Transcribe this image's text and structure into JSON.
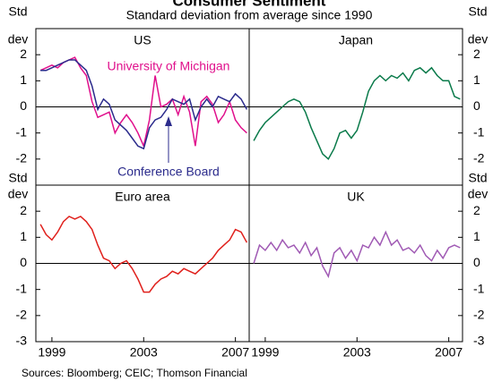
{
  "title": "Consumer Sentiment",
  "subtitle": "Standard deviation from average since 1990",
  "axis_label": [
    "Std",
    "dev"
  ],
  "source": "Sources: Bloomberg; CEIC; Thomson Financial",
  "chart_data": [
    {
      "type": "line",
      "title": "US",
      "x": [
        1998.5,
        1998.75,
        1999,
        1999.25,
        1999.5,
        1999.75,
        2000,
        2000.25,
        2000.5,
        2000.75,
        2001,
        2001.25,
        2001.5,
        2001.75,
        2002,
        2002.25,
        2002.5,
        2002.75,
        2003,
        2003.25,
        2003.5,
        2003.75,
        2004,
        2004.25,
        2004.5,
        2004.75,
        2005,
        2005.25,
        2005.5,
        2005.75,
        2006,
        2006.25,
        2006.5,
        2006.75,
        2007,
        2007.25,
        2007.5
      ],
      "series": [
        {
          "name": "University of Michigan",
          "color": "#e0108c",
          "values": [
            1.4,
            1.5,
            1.6,
            1.5,
            1.7,
            1.8,
            1.9,
            1.5,
            1.2,
            0.2,
            -0.4,
            -0.3,
            -0.2,
            -1.0,
            -0.6,
            -0.3,
            -0.6,
            -1.0,
            -1.5,
            -0.5,
            1.2,
            0.0,
            0.1,
            0.3,
            -0.3,
            0.4,
            -0.2,
            -1.5,
            0.2,
            0.4,
            0.1,
            -0.6,
            -0.3,
            0.2,
            -0.5,
            -0.8,
            -1.0
          ]
        },
        {
          "name": "Conference Board",
          "color": "#2b2b8c",
          "values": [
            1.4,
            1.4,
            1.5,
            1.6,
            1.7,
            1.8,
            1.8,
            1.6,
            1.4,
            0.8,
            -0.1,
            0.3,
            0.1,
            -0.5,
            -0.7,
            -0.9,
            -1.2,
            -1.5,
            -1.6,
            -0.8,
            -0.5,
            -0.4,
            -0.1,
            0.3,
            0.2,
            0.1,
            0.3,
            -0.5,
            0.0,
            0.3,
            0.0,
            0.4,
            0.3,
            0.2,
            0.5,
            0.3,
            -0.1
          ]
        }
      ],
      "xlim": [
        1998.3,
        2007.6
      ],
      "ylim": [
        -3,
        3
      ],
      "yticks": [
        -2,
        -1,
        0,
        1,
        2
      ]
    },
    {
      "type": "line",
      "title": "Japan",
      "x": [
        1998.5,
        1998.75,
        1999,
        1999.25,
        1999.5,
        1999.75,
        2000,
        2000.25,
        2000.5,
        2000.75,
        2001,
        2001.25,
        2001.5,
        2001.75,
        2002,
        2002.25,
        2002.5,
        2002.75,
        2003,
        2003.25,
        2003.5,
        2003.75,
        2004,
        2004.25,
        2004.5,
        2004.75,
        2005,
        2005.25,
        2005.5,
        2005.75,
        2006,
        2006.25,
        2006.5,
        2006.75,
        2007,
        2007.25,
        2007.5
      ],
      "series": [
        {
          "name": "Japan",
          "color": "#0a7a4a",
          "values": [
            -1.3,
            -0.9,
            -0.6,
            -0.4,
            -0.2,
            0.0,
            0.2,
            0.3,
            0.2,
            -0.2,
            -0.8,
            -1.3,
            -1.8,
            -2.0,
            -1.6,
            -1.0,
            -0.9,
            -1.2,
            -0.9,
            -0.2,
            0.6,
            1.0,
            1.2,
            1.0,
            1.2,
            1.1,
            1.3,
            1.0,
            1.4,
            1.5,
            1.3,
            1.5,
            1.2,
            1.0,
            1.0,
            0.4,
            0.3
          ]
        }
      ],
      "xlim": [
        1998.3,
        2007.6
      ],
      "ylim": [
        -3,
        3
      ],
      "yticks": [
        -2,
        -1,
        0,
        1,
        2
      ]
    },
    {
      "type": "line",
      "title": "Euro area",
      "x": [
        1998.5,
        1998.75,
        1999,
        1999.25,
        1999.5,
        1999.75,
        2000,
        2000.25,
        2000.5,
        2000.75,
        2001,
        2001.25,
        2001.5,
        2001.75,
        2002,
        2002.25,
        2002.5,
        2002.75,
        2003,
        2003.25,
        2003.5,
        2003.75,
        2004,
        2004.25,
        2004.5,
        2004.75,
        2005,
        2005.25,
        2005.5,
        2005.75,
        2006,
        2006.25,
        2006.5,
        2006.75,
        2007,
        2007.25,
        2007.5
      ],
      "series": [
        {
          "name": "Euro area",
          "color": "#e0201c",
          "values": [
            1.5,
            1.1,
            0.9,
            1.2,
            1.6,
            1.8,
            1.7,
            1.8,
            1.6,
            1.3,
            0.7,
            0.2,
            0.1,
            -0.2,
            0.0,
            0.1,
            -0.2,
            -0.6,
            -1.1,
            -1.1,
            -0.8,
            -0.6,
            -0.5,
            -0.3,
            -0.4,
            -0.2,
            -0.3,
            -0.4,
            -0.2,
            0.0,
            0.2,
            0.5,
            0.7,
            0.9,
            1.3,
            1.2,
            0.8
          ]
        }
      ],
      "xlim": [
        1998.3,
        2007.6
      ],
      "ylim": [
        -3,
        3
      ],
      "yticks": [
        -3,
        -2,
        -1,
        0,
        1,
        2
      ],
      "xticks": [
        1999,
        2003,
        2007
      ]
    },
    {
      "type": "line",
      "title": "UK",
      "x": [
        1998.5,
        1998.75,
        1999,
        1999.25,
        1999.5,
        1999.75,
        2000,
        2000.25,
        2000.5,
        2000.75,
        2001,
        2001.25,
        2001.5,
        2001.75,
        2002,
        2002.25,
        2002.5,
        2002.75,
        2003,
        2003.25,
        2003.5,
        2003.75,
        2004,
        2004.25,
        2004.5,
        2004.75,
        2005,
        2005.25,
        2005.5,
        2005.75,
        2006,
        2006.25,
        2006.5,
        2006.75,
        2007,
        2007.25,
        2007.5
      ],
      "series": [
        {
          "name": "UK",
          "color": "#a05ab4",
          "values": [
            0.0,
            0.7,
            0.5,
            0.8,
            0.5,
            0.9,
            0.6,
            0.7,
            0.4,
            0.8,
            0.3,
            0.6,
            -0.1,
            -0.5,
            0.4,
            0.6,
            0.2,
            0.5,
            0.1,
            0.7,
            0.6,
            1.0,
            0.7,
            1.2,
            0.7,
            0.9,
            0.5,
            0.6,
            0.4,
            0.7,
            0.3,
            0.1,
            0.5,
            0.2,
            0.6,
            0.7,
            0.6
          ]
        }
      ],
      "xlim": [
        1998.3,
        2007.6
      ],
      "ylim": [
        -3,
        3
      ],
      "yticks": [
        -3,
        -2,
        -1,
        0,
        1,
        2
      ],
      "xticks": [
        1999,
        2003,
        2007
      ]
    }
  ]
}
